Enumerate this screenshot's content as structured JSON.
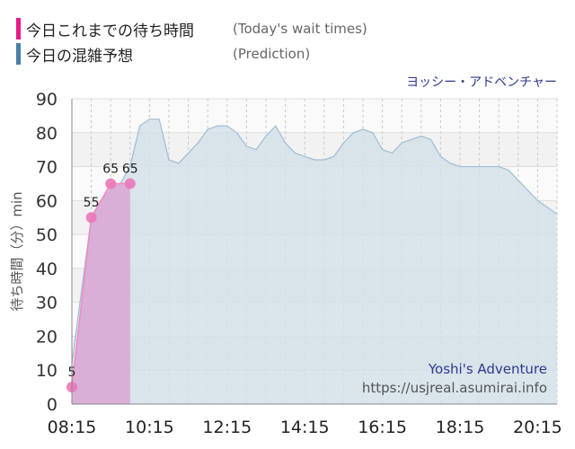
{
  "legend": {
    "actual_label": "今日これまでの待ち時間",
    "actual_sub": "(Today's wait times)",
    "prediction_label": "今日の混雑予想",
    "prediction_sub": "(Prediction)"
  },
  "colors": {
    "actual": "#e8198b",
    "prediction": "#4a7fa8",
    "prediction_fill": "#d3e0e9",
    "actual_fill": "#d9a6d3",
    "point": "#ea78b8",
    "watermark_title": "#2e3a8c",
    "watermark_url": "#555555"
  },
  "attraction_name": "ヨッシー・アドベンチャー",
  "watermark": {
    "title": "Yoshi's Adventure",
    "url": "https://usjreal.asumirai.info"
  },
  "chart_data": {
    "type": "area",
    "ylabel": "待ち時間（分）min",
    "ylim": [
      0,
      90
    ],
    "yticks": [
      0,
      10,
      20,
      30,
      40,
      50,
      60,
      70,
      80,
      90
    ],
    "xlim": [
      "08:15",
      "20:45"
    ],
    "xticks": [
      "08:15",
      "10:15",
      "12:15",
      "14:15",
      "16:15",
      "18:15",
      "20:15"
    ],
    "grid": true,
    "series": [
      {
        "name": "今日の混雑予想",
        "x": [
          "08:15",
          "08:45",
          "09:00",
          "09:15",
          "09:30",
          "09:45",
          "10:00",
          "10:15",
          "10:30",
          "10:45",
          "11:00",
          "11:15",
          "11:30",
          "11:45",
          "12:00",
          "12:15",
          "12:30",
          "12:45",
          "13:00",
          "13:15",
          "13:30",
          "13:45",
          "14:00",
          "14:15",
          "14:30",
          "14:45",
          "15:00",
          "15:15",
          "15:30",
          "15:45",
          "16:00",
          "16:15",
          "16:30",
          "16:45",
          "17:00",
          "17:15",
          "17:30",
          "17:45",
          "18:00",
          "18:15",
          "18:30",
          "18:45",
          "19:00",
          "19:15",
          "19:30",
          "19:45",
          "20:00",
          "20:15",
          "20:30",
          "20:45"
        ],
        "values": [
          12,
          55,
          60,
          63,
          65,
          70,
          82,
          84,
          84,
          72,
          71,
          74,
          77,
          81,
          82,
          82,
          80,
          76,
          75,
          79,
          82,
          77,
          74,
          73,
          72,
          72,
          73,
          77,
          80,
          81,
          80,
          75,
          74,
          77,
          78,
          79,
          78,
          73,
          71,
          70,
          70,
          70,
          70,
          70,
          69,
          66,
          63,
          60,
          58,
          56
        ]
      },
      {
        "name": "今日これまでの待ち時間",
        "x": [
          "08:15",
          "08:45",
          "09:15",
          "09:45"
        ],
        "values": [
          5,
          55,
          65,
          65
        ]
      }
    ]
  }
}
